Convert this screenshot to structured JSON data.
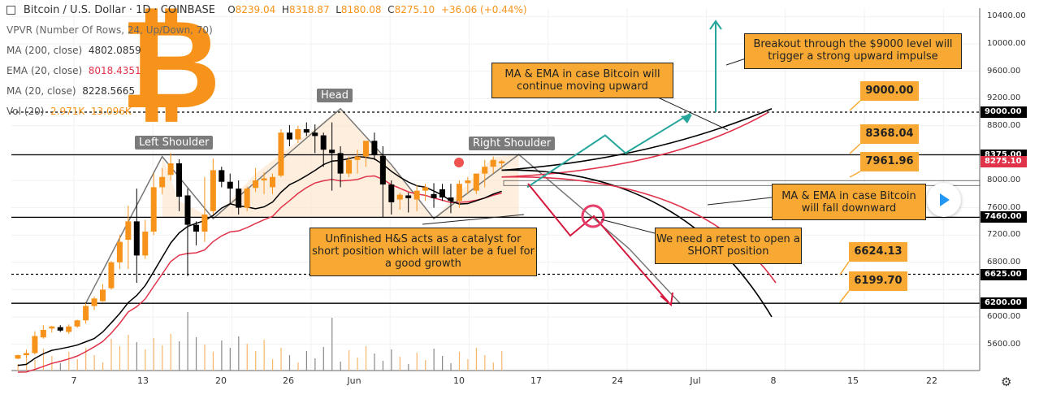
{
  "header": {
    "title": "Bitcoin / U.S. Dollar · 1D · COINBASE",
    "o_label": "O",
    "o_val": "8239.04",
    "h_label": "H",
    "h_val": "8318.87",
    "l_label": "L",
    "l_val": "8180.08",
    "c_label": "C",
    "c_val": "8275.10",
    "change": "+36.06 (+0.44%)"
  },
  "indicators": {
    "vpvr": "VPVR (Number Of Rows, 24, Up/Down, 70)",
    "ma200_label": "MA (200, close)",
    "ma200_val": "4802.0859",
    "ema20_label": "EMA (20, close)",
    "ema20_val": "8018.4351",
    "ma20_label": "MA (20, close)",
    "ma20_val": "8228.5665",
    "vol_label": "Vol (20)",
    "vol_a": "2.971K",
    "vol_b": "13.096K"
  },
  "colors": {
    "up": "#f7931a",
    "down": "#000000",
    "ema": "#e0334a",
    "ma": "#000000",
    "arrow_up": "#26a69a",
    "arrow_down": "#d4183d"
  },
  "annotations": {
    "head": "Head",
    "left_shoulder": "Left Shoulder",
    "right_shoulder": "Right Shoulder",
    "breakout": "Breakout through the $9000 level will trigger a strong upward impulse",
    "ma_up": "MA & EMA in case Bitcoin will continue moving upward",
    "ma_down": "MA & EMA in case Bitcoin will fall downward",
    "hs": "Unfinished H&S acts as a catalyst for short position which will later be a fuel for a good growth",
    "retest": "We need a retest to open a SHORT position",
    "p9000": "9000.00",
    "p8368": "8368.04",
    "p7961": "7961.96",
    "p6624": "6624.13",
    "p6199": "6199.70"
  },
  "yaxis": {
    "ticks": [
      "10400.00",
      "10000.00",
      "9600.00",
      "9200.00",
      "8800.00",
      "8000.00",
      "7600.00",
      "7200.00",
      "6800.00",
      "6000.00",
      "5600.00"
    ],
    "tags": [
      "9000.00",
      "8375.00",
      "8275.10",
      "7460.00",
      "6625.00",
      "6200.00"
    ]
  },
  "xaxis": {
    "ticks": [
      "7",
      "13",
      "20",
      "26",
      "Jun",
      "10",
      "17",
      "24",
      "Jul",
      "8",
      "15",
      "22"
    ]
  },
  "chart_data": {
    "type": "candlestick",
    "title": "Bitcoin / U.S. Dollar · 1D · COINBASE",
    "ylim": [
      5200,
      10500
    ],
    "horizontal_levels": [
      9000,
      8375,
      7460,
      6625,
      6200
    ],
    "candles": [
      [
        5390,
        5450,
        5380,
        5440
      ],
      [
        5440,
        5520,
        5400,
        5470
      ],
      [
        5470,
        5790,
        5450,
        5720
      ],
      [
        5700,
        5880,
        5680,
        5810
      ],
      [
        5830,
        5870,
        5770,
        5860
      ],
      [
        5850,
        5880,
        5780,
        5800
      ],
      [
        5780,
        5890,
        5750,
        5860
      ],
      [
        5860,
        5960,
        5840,
        5950
      ],
      [
        5950,
        6200,
        5900,
        6160
      ],
      [
        6160,
        6300,
        6100,
        6270
      ],
      [
        6230,
        6480,
        6220,
        6400
      ],
      [
        6420,
        6820,
        6400,
        6800
      ],
      [
        6800,
        7200,
        6700,
        7100
      ],
      [
        7130,
        7630,
        6700,
        7400
      ],
      [
        7400,
        7880,
        6500,
        6900
      ],
      [
        6900,
        7420,
        6850,
        7250
      ],
      [
        7250,
        8100,
        7200,
        7900
      ],
      [
        7900,
        8180,
        7800,
        8050
      ],
      [
        8080,
        8400,
        8000,
        8250
      ],
      [
        8250,
        8310,
        7550,
        7760
      ],
      [
        7780,
        7880,
        6600,
        7350
      ],
      [
        7350,
        7400,
        7050,
        7250
      ],
      [
        7250,
        8050,
        7100,
        7500
      ],
      [
        7550,
        8320,
        7500,
        8150
      ],
      [
        8150,
        8200,
        7900,
        7980
      ],
      [
        7980,
        8100,
        7650,
        7880
      ],
      [
        7880,
        8000,
        7500,
        7600
      ],
      [
        7600,
        7910,
        7550,
        7880
      ],
      [
        7890,
        8180,
        7830,
        8000
      ],
      [
        8000,
        8120,
        7800,
        8030
      ],
      [
        7900,
        8100,
        7800,
        8050
      ],
      [
        8070,
        8750,
        8050,
        8700
      ],
      [
        8700,
        8810,
        8500,
        8600
      ],
      [
        8600,
        8800,
        8550,
        8750
      ],
      [
        8750,
        8850,
        8650,
        8700
      ],
      [
        8700,
        8820,
        8400,
        8650
      ],
      [
        8660,
        8700,
        8200,
        8450
      ],
      [
        8450,
        8850,
        7850,
        8400
      ],
      [
        8400,
        8500,
        7900,
        8100
      ],
      [
        8100,
        8350,
        8050,
        8300
      ],
      [
        8300,
        8450,
        8100,
        8350
      ],
      [
        8350,
        8560,
        8200,
        8580
      ],
      [
        8580,
        8700,
        8300,
        8380
      ],
      [
        8360,
        8500,
        7450,
        7940
      ],
      [
        7940,
        8000,
        7500,
        7680
      ],
      [
        7720,
        7820,
        7570,
        7790
      ],
      [
        7780,
        7820,
        7530,
        7740
      ],
      [
        7720,
        7930,
        7550,
        7850
      ],
      [
        7850,
        7950,
        7700,
        7900
      ],
      [
        7800,
        7960,
        7600,
        7740
      ],
      [
        7870,
        7950,
        7700,
        7750
      ],
      [
        7750,
        7950,
        7520,
        7700
      ],
      [
        7700,
        8000,
        7600,
        7950
      ],
      [
        7960,
        8050,
        7800,
        8000
      ],
      [
        7850,
        8100,
        7800,
        8100
      ],
      [
        8100,
        8300,
        7900,
        8200
      ],
      [
        8200,
        8350,
        8100,
        8300
      ],
      [
        8250,
        8300,
        8170,
        8280
      ]
    ]
  }
}
